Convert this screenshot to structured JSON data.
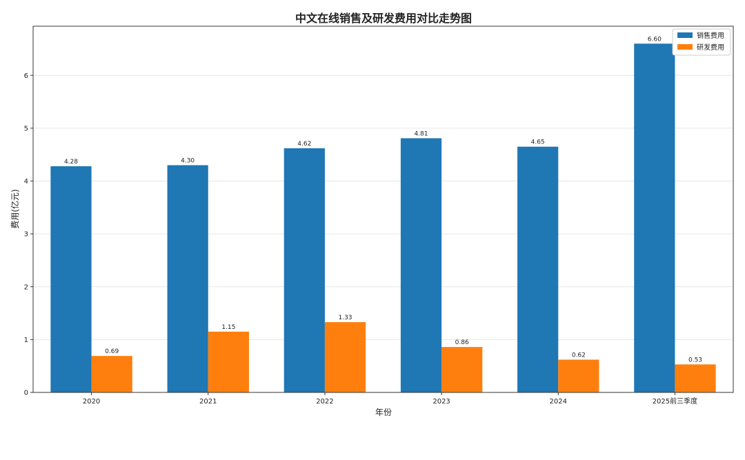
{
  "chart_data": {
    "type": "bar",
    "title": "中文在线销售及研发费用对比走势图",
    "xlabel": "年份",
    "ylabel": "费用(亿元)",
    "categories": [
      "2020",
      "2021",
      "2022",
      "2023",
      "2024",
      "2025前三季度"
    ],
    "series": [
      {
        "name": "销售费用",
        "values": [
          4.28,
          4.3,
          4.62,
          4.81,
          4.65,
          6.6
        ],
        "labels": [
          "4.28",
          "4.30",
          "4.62",
          "4.81",
          "4.65",
          "6.60"
        ],
        "color": "#1f77b4"
      },
      {
        "name": "研发费用",
        "values": [
          0.69,
          1.15,
          1.33,
          0.86,
          0.62,
          0.53
        ],
        "labels": [
          "0.69",
          "1.15",
          "1.33",
          "0.86",
          "0.62",
          "0.53"
        ],
        "color": "#ff7f0e"
      }
    ],
    "ylim": [
      0,
      6.93
    ],
    "yticks": [
      0,
      1,
      2,
      3,
      4,
      5,
      6
    ],
    "ytick_labels": [
      "0",
      "1",
      "2",
      "3",
      "4",
      "5",
      "6"
    ],
    "grid": "horizontal",
    "legend_position": "top-right"
  }
}
